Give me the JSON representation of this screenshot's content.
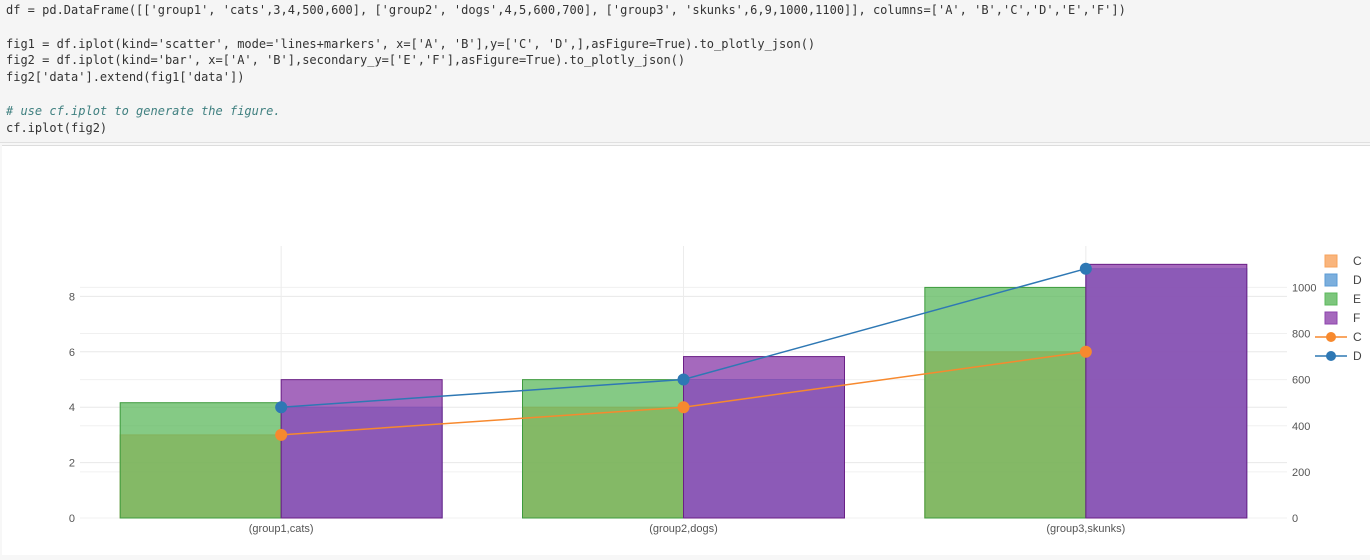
{
  "code": {
    "lines": [
      "df = pd.DataFrame([['group1', 'cats',3,4,500,600], ['group2', 'dogs',4,5,600,700], ['group3', 'skunks',6,9,1000,1100]], columns=['A', 'B','C','D','E','F'])",
      "",
      "fig1 = df.iplot(kind='scatter', mode='lines+markers', x=['A', 'B'],y=['C', 'D',],asFigure=True).to_plotly_json()",
      "fig2 = df.iplot(kind='bar', x=['A', 'B'],secondary_y=['E','F'],asFigure=True).to_plotly_json()",
      "fig2['data'].extend(fig1['data'])",
      ""
    ],
    "comment": "# use cf.iplot to generate the figure.",
    "last_line": "cf.iplot(fig2)"
  },
  "chart_data": {
    "type": "bar",
    "categories": [
      "(group1,cats)",
      "(group2,dogs)",
      "(group3,skunks)"
    ],
    "bars_left_axis": [
      {
        "name": "C",
        "values": [
          3,
          4,
          6
        ],
        "color": "#f7a35c"
      },
      {
        "name": "D",
        "values": [
          4,
          5,
          9
        ],
        "color": "#5b9bd5"
      }
    ],
    "bars_right_axis": [
      {
        "name": "E",
        "values": [
          500,
          600,
          1000
        ],
        "color": "#5cb85c"
      },
      {
        "name": "F",
        "values": [
          600,
          700,
          1100
        ],
        "color": "#8e44ad"
      }
    ],
    "lines": [
      {
        "name": "C",
        "values": [
          3,
          4,
          6
        ],
        "color": "#f7892e"
      },
      {
        "name": "D",
        "values": [
          4,
          5,
          9
        ],
        "color": "#2e78b4"
      }
    ],
    "left_axis": {
      "ticks": [
        "0",
        "2",
        "4",
        "6",
        "8"
      ],
      "range": [
        0,
        9.3
      ]
    },
    "right_axis": {
      "ticks": [
        "0",
        "200",
        "400",
        "600",
        "800",
        "1000"
      ],
      "range": [
        0,
        1100
      ]
    },
    "legend": [
      "C",
      "D",
      "E",
      "F",
      "C",
      "D"
    ],
    "legend_placement": "right"
  }
}
